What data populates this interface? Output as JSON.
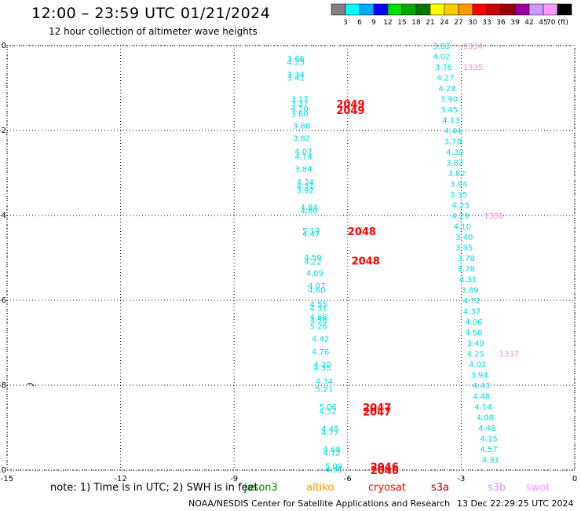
{
  "header": {
    "title": "12:00 – 23:59 UTC 01/21/2024",
    "subtitle": "12 hour collection of altimeter wave heights"
  },
  "colorbar": {
    "labels": [
      "3",
      "6",
      "9",
      "12",
      "15",
      "18",
      "21",
      "24",
      "27",
      "30",
      "33",
      "36",
      "39",
      "42",
      "45",
      "70 (ft)"
    ],
    "colors": [
      "#808080",
      "#00ffff",
      "#00aaff",
      "#0000ff",
      "#00dd00",
      "#00aa00",
      "#007700",
      "#ffff00",
      "#ffcc00",
      "#ff9900",
      "#ff0000",
      "#cc0000",
      "#990000",
      "#990099",
      "#cc99ff",
      "#ff99ff",
      "#000000"
    ]
  },
  "footer": {
    "note": "note:  1) Time is in UTC;  2) SWH is in feet",
    "satellites": [
      {
        "name": "jason3",
        "color": "#008000"
      },
      {
        "name": "altiko",
        "color": "#ff9900"
      },
      {
        "name": "cryosat",
        "color": "#ff0000"
      },
      {
        "name": "s3a",
        "color": "#990000"
      },
      {
        "name": "s3b",
        "color": "#cc99ff"
      },
      {
        "name": "swot",
        "color": "#ff99ff"
      }
    ],
    "credit": "NOAA/NESDIS Center for Satellite Applications and Research",
    "timestamp": "13 Dec 22:29:25 UTC 2024"
  },
  "chart_data": {
    "type": "scatter",
    "title": "12:00 – 23:59 UTC 01/21/2024",
    "xlim": [
      -15,
      0
    ],
    "ylim": [
      -10,
      0
    ],
    "xticks": [
      "-15",
      "-12",
      "-9",
      "-6",
      "-3",
      "0"
    ],
    "yticks": [
      "0",
      "-2",
      "-4",
      "-6",
      "-8",
      "-10"
    ],
    "grid": true,
    "series": [
      {
        "name": "swh",
        "color": "#00dddd",
        "points": [
          {
            "x": -7.6,
            "y": -0.3,
            "label": "3.66"
          },
          {
            "x": -7.6,
            "y": -0.38,
            "label": "4.25"
          },
          {
            "x": -7.6,
            "y": -0.68,
            "label": "3.34"
          },
          {
            "x": -7.6,
            "y": -0.75,
            "label": "3.41"
          },
          {
            "x": -7.5,
            "y": -1.25,
            "label": "3.17"
          },
          {
            "x": -7.5,
            "y": -1.35,
            "label": "3.37"
          },
          {
            "x": -7.5,
            "y": -1.48,
            "label": "4.20"
          },
          {
            "x": -7.5,
            "y": -1.6,
            "label": "3.60"
          },
          {
            "x": -7.45,
            "y": -1.88,
            "label": "3.86"
          },
          {
            "x": -7.45,
            "y": -2.18,
            "label": "3.82"
          },
          {
            "x": -7.4,
            "y": -2.48,
            "label": "4.07"
          },
          {
            "x": -7.4,
            "y": -2.6,
            "label": "4.14"
          },
          {
            "x": -7.4,
            "y": -2.9,
            "label": "3.84"
          },
          {
            "x": -7.35,
            "y": -3.2,
            "label": "4.34"
          },
          {
            "x": -7.35,
            "y": -3.3,
            "label": "4.31"
          },
          {
            "x": -7.35,
            "y": -3.4,
            "label": "3.92"
          },
          {
            "x": -7.25,
            "y": -3.8,
            "label": "4.84"
          },
          {
            "x": -7.25,
            "y": -3.88,
            "label": "4.80"
          },
          {
            "x": -7.2,
            "y": -4.35,
            "label": "5.13"
          },
          {
            "x": -7.2,
            "y": -4.43,
            "label": "4.47"
          },
          {
            "x": -7.15,
            "y": -4.98,
            "label": "4.59"
          },
          {
            "x": -7.15,
            "y": -5.08,
            "label": "4.22"
          },
          {
            "x": -7.1,
            "y": -5.35,
            "label": "4.09"
          },
          {
            "x": -7.05,
            "y": -5.65,
            "label": "4.07"
          },
          {
            "x": -7.05,
            "y": -5.75,
            "label": "4.60"
          },
          {
            "x": -7.0,
            "y": -6.08,
            "label": "4.55"
          },
          {
            "x": -7.0,
            "y": -6.18,
            "label": "4.31"
          },
          {
            "x": -7.0,
            "y": -6.38,
            "label": "4.68"
          },
          {
            "x": -7.0,
            "y": -6.46,
            "label": "4.58"
          },
          {
            "x": -7.0,
            "y": -6.6,
            "label": "5.26"
          },
          {
            "x": -6.95,
            "y": -6.9,
            "label": "4.42"
          },
          {
            "x": -6.95,
            "y": -7.2,
            "label": "4.76"
          },
          {
            "x": -6.9,
            "y": -7.5,
            "label": "4.20"
          },
          {
            "x": -6.9,
            "y": -7.58,
            "label": "4.35"
          },
          {
            "x": -6.85,
            "y": -7.9,
            "label": "4.34"
          },
          {
            "x": -6.85,
            "y": -8.08,
            "label": "5.21"
          },
          {
            "x": -6.75,
            "y": -8.5,
            "label": "5.06"
          },
          {
            "x": -6.75,
            "y": -8.6,
            "label": "4.52"
          },
          {
            "x": -6.7,
            "y": -9.02,
            "label": "4.45"
          },
          {
            "x": -6.7,
            "y": -9.1,
            "label": "4.77"
          },
          {
            "x": -6.65,
            "y": -9.5,
            "label": "4.68"
          },
          {
            "x": -6.65,
            "y": -9.58,
            "label": "4.72"
          },
          {
            "x": -6.6,
            "y": -9.9,
            "label": "5.09"
          },
          {
            "x": -6.6,
            "y": -9.98,
            "label": "4.95"
          },
          {
            "x": -3.75,
            "y": 0.0,
            "label": "3.83"
          },
          {
            "x": -3.75,
            "y": -0.25,
            "label": "4.02"
          },
          {
            "x": -3.7,
            "y": -0.5,
            "label": "3.76"
          },
          {
            "x": -3.65,
            "y": -0.75,
            "label": "4.27"
          },
          {
            "x": -3.6,
            "y": -1.0,
            "label": "4.28"
          },
          {
            "x": -3.55,
            "y": -1.25,
            "label": "3.90"
          },
          {
            "x": -3.55,
            "y": -1.5,
            "label": "3.45"
          },
          {
            "x": -3.5,
            "y": -1.75,
            "label": "4.13"
          },
          {
            "x": -3.45,
            "y": -2.0,
            "label": "4.44"
          },
          {
            "x": -3.45,
            "y": -2.25,
            "label": "3.78"
          },
          {
            "x": -3.4,
            "y": -2.5,
            "label": "4.30"
          },
          {
            "x": -3.4,
            "y": -2.75,
            "label": "3.82"
          },
          {
            "x": -3.35,
            "y": -3.0,
            "label": "3.82"
          },
          {
            "x": -3.3,
            "y": -3.25,
            "label": "3.94"
          },
          {
            "x": -3.3,
            "y": -3.5,
            "label": "3.35"
          },
          {
            "x": -3.25,
            "y": -3.75,
            "label": "4.23"
          },
          {
            "x": -3.25,
            "y": -4.0,
            "label": "4.29"
          },
          {
            "x": -3.2,
            "y": -4.25,
            "label": "4.10"
          },
          {
            "x": -3.15,
            "y": -4.5,
            "label": "3.40"
          },
          {
            "x": -3.15,
            "y": -4.75,
            "label": "3.95"
          },
          {
            "x": -3.1,
            "y": -5.0,
            "label": "3.78"
          },
          {
            "x": -3.1,
            "y": -5.25,
            "label": "3.78"
          },
          {
            "x": -3.05,
            "y": -5.5,
            "label": "4.31"
          },
          {
            "x": -3.0,
            "y": -5.75,
            "label": "3.89"
          },
          {
            "x": -2.95,
            "y": -6.0,
            "label": "4.72"
          },
          {
            "x": -2.95,
            "y": -6.25,
            "label": "4.37"
          },
          {
            "x": -2.9,
            "y": -6.5,
            "label": "4.06"
          },
          {
            "x": -2.9,
            "y": -6.75,
            "label": "4.50"
          },
          {
            "x": -2.85,
            "y": -7.0,
            "label": "3.49"
          },
          {
            "x": -2.85,
            "y": -7.25,
            "label": "4.25"
          },
          {
            "x": -2.8,
            "y": -7.5,
            "label": "4.02"
          },
          {
            "x": -2.75,
            "y": -7.75,
            "label": "3.94"
          },
          {
            "x": -2.7,
            "y": -8.0,
            "label": "4.43"
          },
          {
            "x": -2.7,
            "y": -8.25,
            "label": "4.48"
          },
          {
            "x": -2.65,
            "y": -8.5,
            "label": "4.14"
          },
          {
            "x": -2.6,
            "y": -8.75,
            "label": "4.08"
          },
          {
            "x": -2.55,
            "y": -9.0,
            "label": "4.48"
          },
          {
            "x": -2.5,
            "y": -9.25,
            "label": "4.15"
          },
          {
            "x": -2.5,
            "y": -9.5,
            "label": "4.57"
          },
          {
            "x": -2.45,
            "y": -9.75,
            "label": "4.31"
          }
        ]
      },
      {
        "name": "cryosat",
        "color": "#ff0000",
        "points": [
          {
            "x": -6.3,
            "y": -1.35,
            "label": "2049"
          },
          {
            "x": -6.3,
            "y": -1.5,
            "label": "2049"
          },
          {
            "x": -6.0,
            "y": -4.35,
            "label": "2048"
          },
          {
            "x": -5.9,
            "y": -5.05,
            "label": "2048"
          },
          {
            "x": -5.6,
            "y": -8.5,
            "label": "2047"
          },
          {
            "x": -5.6,
            "y": -8.6,
            "label": "2047"
          },
          {
            "x": -5.4,
            "y": -9.9,
            "label": "2046"
          },
          {
            "x": -5.4,
            "y": -9.98,
            "label": "2046"
          }
        ]
      },
      {
        "name": "swot",
        "color": "#ff88dd",
        "points": [
          {
            "x": -2.95,
            "y": 0.0,
            "label": "1334"
          },
          {
            "x": -2.95,
            "y": -0.5,
            "label": "1335"
          },
          {
            "x": -2.4,
            "y": -4.0,
            "label": "1336"
          },
          {
            "x": -2.0,
            "y": -7.25,
            "label": "1337"
          }
        ]
      }
    ]
  }
}
